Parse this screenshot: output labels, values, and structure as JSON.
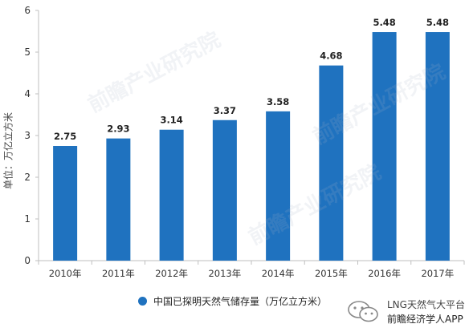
{
  "chart_data": {
    "type": "bar",
    "categories": [
      "2010年",
      "2011年",
      "2012年",
      "2013年",
      "2014年",
      "2015年",
      "2016年",
      "2017年"
    ],
    "values": [
      2.75,
      2.93,
      3.14,
      3.37,
      3.58,
      4.68,
      5.48,
      5.48
    ],
    "ylabel": "单位：万亿立方米",
    "ylim": [
      0,
      6
    ],
    "yticks": [
      0,
      1,
      2,
      3,
      4,
      5,
      6
    ],
    "grid": false,
    "data_labels": true,
    "legend": {
      "position": "bottom",
      "entries": [
        "中国已探明天然气储存量（万亿立方米）"
      ]
    },
    "series": [
      {
        "name": "中国已探明天然气储存量（万亿立方米）",
        "color": "#1f72bf"
      }
    ]
  },
  "watermark": {
    "text": "前瞻产业研究院"
  },
  "footer": {
    "account": "LNG天然气大平台",
    "platform": "前瞻经济学人APP"
  },
  "icons": {
    "wechat": "wechat-icon"
  }
}
